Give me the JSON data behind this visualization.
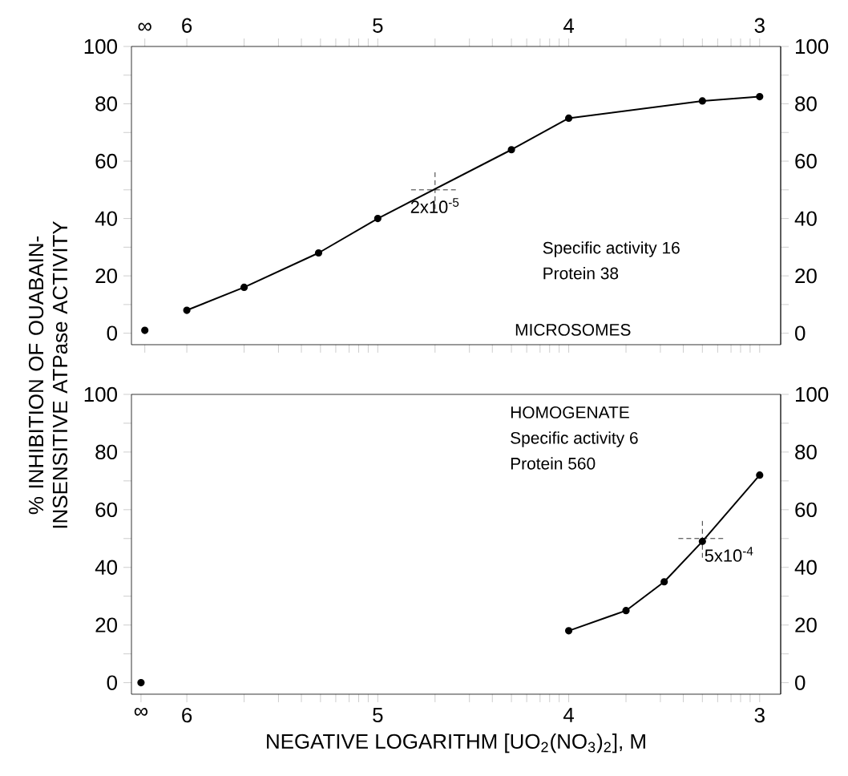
{
  "chart_data": [
    {
      "type": "line",
      "ylabel": "% INHIBITION OF OUABAIN-INSENSITIVE ATPase ACTIVITY",
      "marker": "circle",
      "line_style": "solid",
      "xlim": [
        6.29,
        2.89
      ],
      "xticks": [
        {
          "value": 6.22,
          "label": "∞"
        },
        6,
        {
          "value": 5.7,
          "label": null
        },
        {
          "value": 5.52,
          "label": null
        },
        {
          "value": 5.4,
          "label": null
        },
        {
          "value": 5.3,
          "label": null
        },
        {
          "value": 5.22,
          "label": null
        },
        {
          "value": 5.15,
          "label": null
        },
        {
          "value": 5.1,
          "label": null
        },
        {
          "value": 5.05,
          "label": null
        },
        5,
        {
          "value": 4.7,
          "label": null
        },
        {
          "value": 4.52,
          "label": null
        },
        {
          "value": 4.4,
          "label": null
        },
        {
          "value": 4.3,
          "label": null
        },
        {
          "value": 4.22,
          "label": null
        },
        {
          "value": 4.15,
          "label": null
        },
        {
          "value": 4.1,
          "label": null
        },
        {
          "value": 4.05,
          "label": null
        },
        4,
        {
          "value": 3.7,
          "label": null
        },
        {
          "value": 3.52,
          "label": null
        },
        {
          "value": 3.4,
          "label": null
        },
        {
          "value": 3.3,
          "label": null
        },
        {
          "value": 3.22,
          "label": null
        },
        {
          "value": 3.15,
          "label": null
        },
        {
          "value": 3.1,
          "label": null
        },
        {
          "value": 3.05,
          "label": null
        },
        3
      ],
      "ylim": [
        -4,
        100
      ],
      "yticks": [
        0,
        {
          "value": 10,
          "label": null
        },
        20,
        {
          "value": 30,
          "label": null
        },
        40,
        {
          "value": 50,
          "label": null
        },
        60,
        {
          "value": 70,
          "label": null
        },
        80,
        {
          "value": 90,
          "label": null
        },
        100
      ],
      "y2lim": [
        -4,
        100
      ],
      "y2ticks": [
        0,
        {
          "value": 10,
          "label": null
        },
        20,
        {
          "value": 30,
          "label": null
        },
        40,
        {
          "value": 50,
          "label": null
        },
        60,
        {
          "value": 70,
          "label": null
        },
        80,
        {
          "value": 90,
          "label": null
        },
        100
      ],
      "series": [
        {
          "color": "#000000",
          "x": [
            6,
            5.7,
            5.31,
            5,
            4.3,
            4,
            3.3,
            3
          ],
          "values": [
            8,
            16,
            28,
            40,
            64,
            75,
            81,
            82.5
          ]
        },
        {
          "type": "scatter",
          "color": "#000000",
          "x": [
            6.22
          ],
          "values": [
            1
          ]
        }
      ],
      "annotations": [
        {
          "text": "2x10$^{-5}$",
          "x": 4.7,
          "y": 50
        },
        "Specific activity  16",
        "Protein  38",
        "MICROSOMES"
      ]
    },
    {
      "type": "line",
      "xlabel": "NEGATIVE LOGARITHM [UO$_{2}$(NO$_{3}$)$_{2}$], M",
      "marker": "circle",
      "line_style": "solid",
      "xlim": [
        6.29,
        2.89
      ],
      "xticks": [
        {
          "value": 6.24,
          "label": "∞"
        },
        6,
        {
          "value": 5.7,
          "label": null
        },
        {
          "value": 5.52,
          "label": null
        },
        {
          "value": 5.4,
          "label": null
        },
        {
          "value": 5.3,
          "label": null
        },
        {
          "value": 5.22,
          "label": null
        },
        {
          "value": 5.15,
          "label": null
        },
        {
          "value": 5.1,
          "label": null
        },
        {
          "value": 5.05,
          "label": null
        },
        5,
        {
          "value": 4.7,
          "label": null
        },
        {
          "value": 4.52,
          "label": null
        },
        {
          "value": 4.4,
          "label": null
        },
        {
          "value": 4.3,
          "label": null
        },
        {
          "value": 4.22,
          "label": null
        },
        {
          "value": 4.15,
          "label": null
        },
        {
          "value": 4.1,
          "label": null
        },
        {
          "value": 4.05,
          "label": null
        },
        4,
        {
          "value": 3.7,
          "label": null
        },
        {
          "value": 3.52,
          "label": null
        },
        {
          "value": 3.4,
          "label": null
        },
        {
          "value": 3.3,
          "label": null
        },
        {
          "value": 3.22,
          "label": null
        },
        {
          "value": 3.15,
          "label": null
        },
        {
          "value": 3.1,
          "label": null
        },
        {
          "value": 3.05,
          "label": null
        },
        3
      ],
      "ylim": [
        -4,
        100
      ],
      "yticks": [
        0,
        {
          "value": 10,
          "label": null
        },
        20,
        {
          "value": 30,
          "label": null
        },
        40,
        {
          "value": 50,
          "label": null
        },
        60,
        {
          "value": 70,
          "label": null
        },
        80,
        {
          "value": 90,
          "label": null
        },
        100
      ],
      "y2lim": [
        -4,
        100
      ],
      "y2ticks": [
        0,
        {
          "value": 10,
          "label": null
        },
        20,
        {
          "value": 30,
          "label": null
        },
        40,
        {
          "value": 50,
          "label": null
        },
        60,
        {
          "value": 70,
          "label": null
        },
        80,
        {
          "value": 90,
          "label": null
        },
        100
      ],
      "series": [
        {
          "color": "#000000",
          "x": [
            4,
            3.7,
            3.5,
            3.3,
            3
          ],
          "values": [
            18,
            25,
            35,
            49,
            72
          ]
        },
        {
          "type": "scatter",
          "color": "#000000",
          "x": [
            6.24
          ],
          "values": [
            0
          ]
        }
      ],
      "annotations": [
        {
          "text": "5x10$^{-4}$",
          "x": 3.3,
          "y": 50
        },
        "HOMOGENATE",
        "Specific activity  6",
        "Protein  560"
      ]
    }
  ]
}
